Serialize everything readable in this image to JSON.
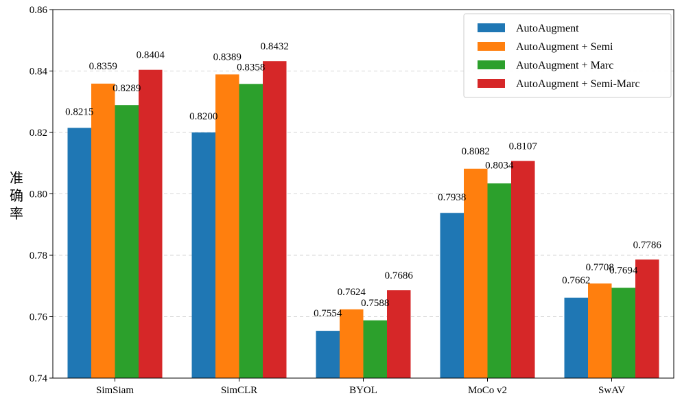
{
  "chart_data": {
    "type": "bar",
    "categories": [
      "SimSiam",
      "SimCLR",
      "BYOL",
      "MoCo v2",
      "SwAV"
    ],
    "series": [
      {
        "name": "AutoAugment",
        "color": "#1f77b4",
        "values": [
          0.8215,
          0.82,
          0.7554,
          0.7938,
          0.7662
        ],
        "labels": [
          "0.8215",
          "0.8200",
          "0.7554",
          "0.7938",
          "0.7662"
        ]
      },
      {
        "name": "AutoAugment + Semi",
        "color": "#ff7f0e",
        "values": [
          0.8359,
          0.8389,
          0.7624,
          0.8082,
          0.7708
        ],
        "labels": [
          "0.8359",
          "0.8389",
          "0.7624",
          "0.8082",
          "0.7708"
        ]
      },
      {
        "name": "AutoAugment + Marc",
        "color": "#2ca02c",
        "values": [
          0.8289,
          0.8358,
          0.7588,
          0.8034,
          0.7694
        ],
        "labels": [
          "0.8289",
          "0.8358",
          "0.7588",
          "0.8034",
          "0.7694"
        ]
      },
      {
        "name": "AutoAugment + Semi-Marc",
        "color": "#d62728",
        "values": [
          0.8404,
          0.8432,
          0.7686,
          0.8107,
          0.7786
        ],
        "labels": [
          "0.8404",
          "0.8432",
          "0.7686",
          "0.8107",
          "0.7786"
        ]
      }
    ],
    "ylabel": "准确率",
    "xlabel": "",
    "title": "",
    "ylim": [
      0.74,
      0.86
    ],
    "yticks": [
      "0.74",
      "0.76",
      "0.78",
      "0.80",
      "0.82",
      "0.84",
      "0.86"
    ],
    "grid": "horizontal dashed",
    "legend_position": "top-right"
  }
}
